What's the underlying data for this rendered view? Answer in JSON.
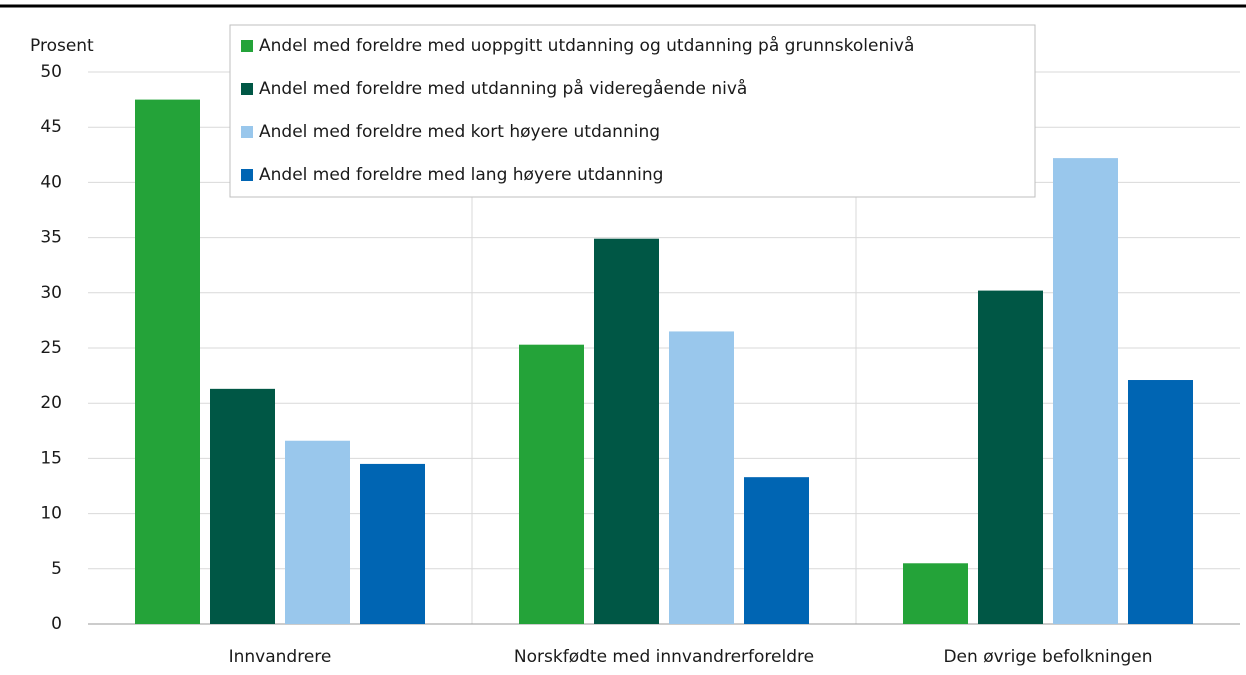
{
  "chart_data": {
    "type": "bar",
    "y_label": "Prosent",
    "categories": [
      "Innvandrere",
      "Norskfødte med innvandrerforeldre",
      "Den øvrige befolkningen"
    ],
    "series": [
      {
        "name": "Andel med foreldre med uoppgitt utdanning og utdanning på grunnskolenivå",
        "color": "#24a339",
        "values": [
          47.5,
          25.3,
          5.5
        ]
      },
      {
        "name": "Andel med foreldre med utdanning på videregående nivå",
        "color": "#005745",
        "values": [
          21.3,
          34.9,
          30.2
        ]
      },
      {
        "name": "Andel med foreldre med kort høyere utdanning",
        "color": "#99c7ec",
        "values": [
          16.6,
          26.5,
          42.2
        ]
      },
      {
        "name": "Andel med foreldre med lang høyere utdanning",
        "color": "#0065b3",
        "values": [
          14.5,
          13.3,
          22.1
        ]
      }
    ],
    "ylim": [
      0,
      50
    ],
    "yticks": [
      0,
      5,
      10,
      15,
      20,
      25,
      30,
      35,
      40,
      45,
      50
    ],
    "grid": true,
    "legend": "top"
  }
}
